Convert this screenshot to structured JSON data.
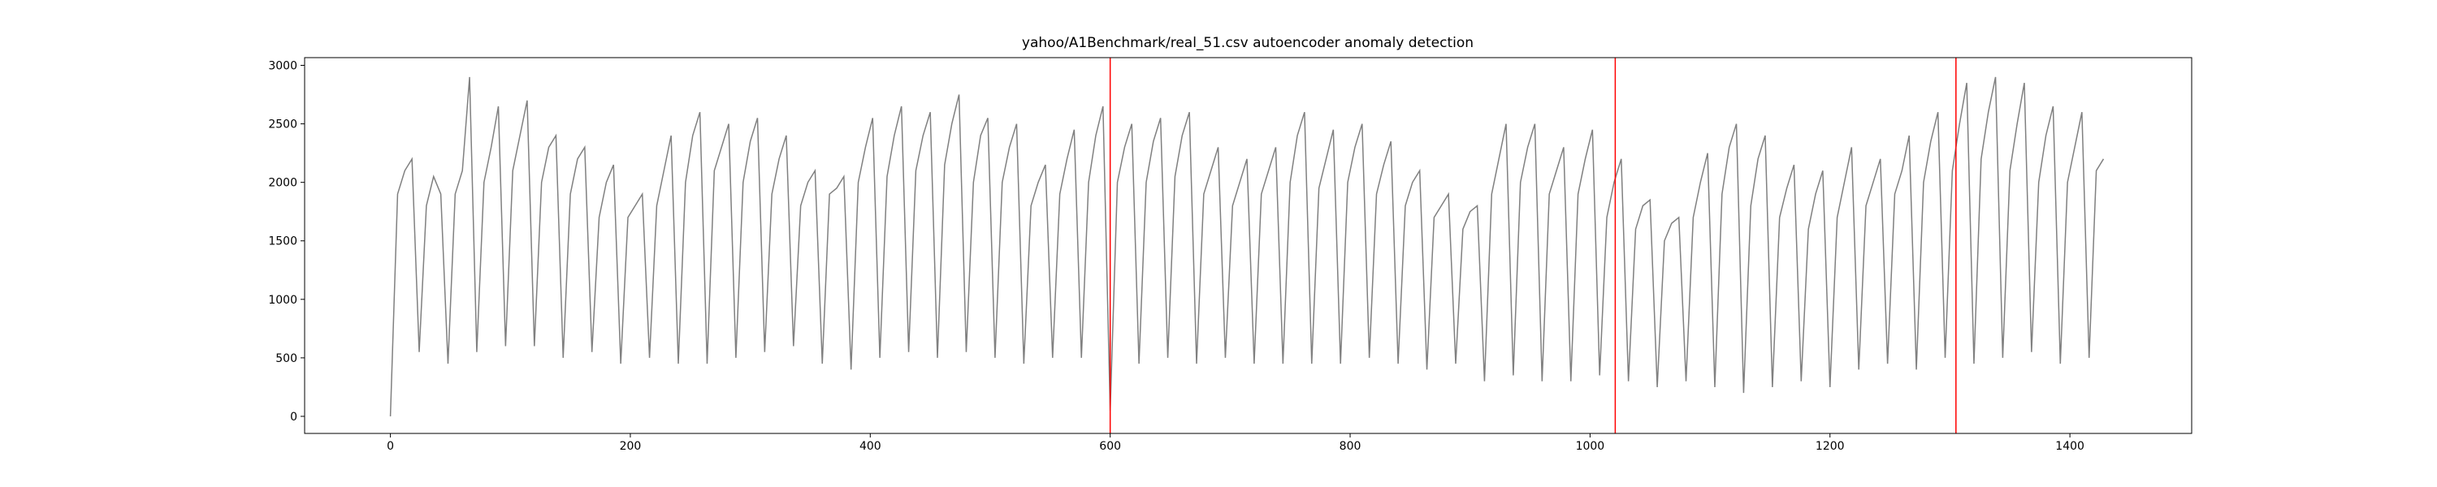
{
  "chart_data": {
    "type": "line",
    "title": "yahoo/A1Benchmark/real_51.csv autoencoder anomaly detection",
    "x": [
      0,
      6,
      12,
      18,
      24,
      30,
      36,
      42,
      48,
      54,
      60,
      66,
      72,
      78,
      84,
      90,
      96,
      102,
      108,
      114,
      120,
      126,
      132,
      138,
      144,
      150,
      156,
      162,
      168,
      174,
      180,
      186,
      192,
      198,
      204,
      210,
      216,
      222,
      228,
      234,
      240,
      246,
      252,
      258,
      264,
      270,
      276,
      282,
      288,
      294,
      300,
      306,
      312,
      318,
      324,
      330,
      336,
      342,
      348,
      354,
      360,
      366,
      372,
      378,
      384,
      390,
      396,
      402,
      408,
      414,
      420,
      426,
      432,
      438,
      444,
      450,
      456,
      462,
      468,
      474,
      480,
      486,
      492,
      498,
      504,
      510,
      516,
      522,
      528,
      534,
      540,
      546,
      552,
      558,
      564,
      570,
      576,
      582,
      588,
      594,
      600,
      606,
      612,
      618,
      624,
      630,
      636,
      642,
      648,
      654,
      660,
      666,
      672,
      678,
      684,
      690,
      696,
      702,
      708,
      714,
      720,
      726,
      732,
      738,
      744,
      750,
      756,
      762,
      768,
      774,
      780,
      786,
      792,
      798,
      804,
      810,
      816,
      822,
      828,
      834,
      840,
      846,
      852,
      858,
      864,
      870,
      876,
      882,
      888,
      894,
      900,
      906,
      912,
      918,
      924,
      930,
      936,
      942,
      948,
      954,
      960,
      966,
      972,
      978,
      984,
      990,
      996,
      1002,
      1008,
      1014,
      1020,
      1026,
      1032,
      1038,
      1044,
      1050,
      1056,
      1062,
      1068,
      1074,
      1080,
      1086,
      1092,
      1098,
      1104,
      1110,
      1116,
      1122,
      1128,
      1134,
      1140,
      1146,
      1152,
      1158,
      1164,
      1170,
      1176,
      1182,
      1188,
      1194,
      1200,
      1206,
      1212,
      1218,
      1224,
      1230,
      1236,
      1242,
      1248,
      1254,
      1260,
      1266,
      1272,
      1278,
      1284,
      1290,
      1296,
      1302,
      1308,
      1314,
      1320,
      1326,
      1332,
      1338,
      1344,
      1350,
      1356,
      1362,
      1368,
      1374,
      1380,
      1386,
      1392,
      1398,
      1404,
      1410,
      1416,
      1422,
      1428
    ],
    "series": [
      {
        "color": "#808080",
        "values": [
          0,
          1900,
          2100,
          2200,
          550,
          1800,
          2050,
          1900,
          450,
          1900,
          2100,
          2900,
          550,
          2000,
          2300,
          2650,
          600,
          2100,
          2400,
          2700,
          600,
          2000,
          2300,
          2400,
          500,
          1900,
          2200,
          2300,
          550,
          1700,
          2000,
          2150,
          450,
          1700,
          1800,
          1900,
          500,
          1800,
          2100,
          2400,
          450,
          2000,
          2400,
          2600,
          450,
          2100,
          2300,
          2500,
          500,
          2000,
          2350,
          2550,
          550,
          1900,
          2200,
          2400,
          600,
          1800,
          2000,
          2100,
          450,
          1900,
          1950,
          2050,
          400,
          2000,
          2300,
          2550,
          500,
          2050,
          2400,
          2650,
          550,
          2100,
          2400,
          2600,
          500,
          2150,
          2500,
          2750,
          550,
          2000,
          2400,
          2550,
          500,
          2000,
          2300,
          2500,
          450,
          1800,
          2000,
          2150,
          500,
          1900,
          2200,
          2450,
          500,
          2000,
          2400,
          2650,
          50,
          2000,
          2300,
          2500,
          450,
          2000,
          2350,
          2550,
          500,
          2050,
          2400,
          2600,
          450,
          1900,
          2100,
          2300,
          500,
          1800,
          2000,
          2200,
          450,
          1900,
          2100,
          2300,
          450,
          2000,
          2400,
          2600,
          450,
          1950,
          2200,
          2450,
          450,
          2000,
          2300,
          2500,
          500,
          1900,
          2150,
          2350,
          450,
          1800,
          2000,
          2100,
          400,
          1700,
          1800,
          1900,
          450,
          1600,
          1750,
          1800,
          300,
          1900,
          2200,
          2500,
          350,
          2000,
          2300,
          2500,
          300,
          1900,
          2100,
          2300,
          300,
          1900,
          2200,
          2450,
          350,
          1700,
          2000,
          2200,
          300,
          1600,
          1800,
          1850,
          250,
          1500,
          1650,
          1700,
          300,
          1700,
          2000,
          2250,
          250,
          1900,
          2300,
          2500,
          200,
          1800,
          2200,
          2400,
          250,
          1700,
          1950,
          2150,
          300,
          1600,
          1900,
          2100,
          250,
          1700,
          2000,
          2300,
          400,
          1800,
          2000,
          2200,
          450,
          1900,
          2100,
          2400,
          400,
          2000,
          2350,
          2600,
          500,
          2100,
          2500,
          2850,
          450,
          2200,
          2600,
          2900,
          500,
          2100,
          2500,
          2850,
          550,
          2000,
          2400,
          2650,
          450,
          2000,
          2300,
          2600,
          500,
          2100,
          2200
        ]
      }
    ],
    "anomalies": {
      "color": "#ff0000",
      "x": [
        600,
        1021,
        1305
      ]
    },
    "xlim": [
      -71.5,
      1501.5
    ],
    "xticks": [
      0,
      200,
      400,
      600,
      800,
      1000,
      1200,
      1400
    ],
    "ylim": [
      -146,
      3066
    ],
    "yticks": [
      0,
      500,
      1000,
      1500,
      2000,
      2500,
      3000
    ]
  }
}
